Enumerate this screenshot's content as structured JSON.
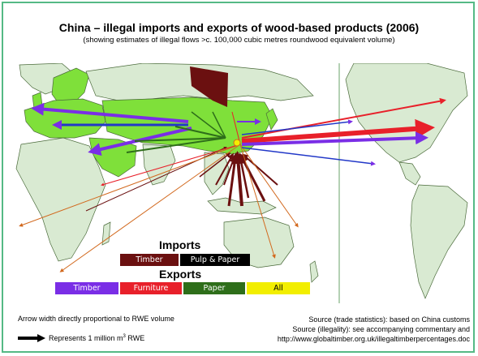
{
  "title": "China – illegal imports and exports of wood-based products (2006)",
  "subtitle": "(showing estimates of illegal flows >c. 100,000 cubic metres roundwood equivalent volume)",
  "legend": {
    "imports_heading": "Imports",
    "imports": [
      {
        "label": "Timber",
        "bg": "#6b1010",
        "fg": "#ffffff"
      },
      {
        "label": "Pulp & Paper",
        "bg": "#000000",
        "fg": "#ffffff"
      }
    ],
    "exports_heading": "Exports",
    "exports": [
      {
        "label": "Timber",
        "bg": "#7a2ee6",
        "fg": "#ffffff"
      },
      {
        "label": "Furniture",
        "bg": "#e8202a",
        "fg": "#ffffff"
      },
      {
        "label": "Paper",
        "bg": "#2e6e1a",
        "fg": "#ffffff"
      },
      {
        "label": "All",
        "bg": "#f2ee00",
        "fg": "#000000"
      }
    ]
  },
  "footer": {
    "arrow_note": "Arrow width directly proportional to RWE volume",
    "represents": "Represents 1 million m",
    "represents_sup": "3",
    "represents_unit": " RWE",
    "source_trade": "Source (trade statistics): based on China customs",
    "source_illegality": "Source (illegality): see accompanying commentary and",
    "source_url": "http://www.globaltimber.org.uk/illegaltimberpercentages.doc"
  },
  "colors": {
    "land": "#d9ead2",
    "land_border": "#4a6a3a",
    "highlight_land": "#7fe03a",
    "ocean": "#ffffff",
    "frame": "#55b985"
  }
}
